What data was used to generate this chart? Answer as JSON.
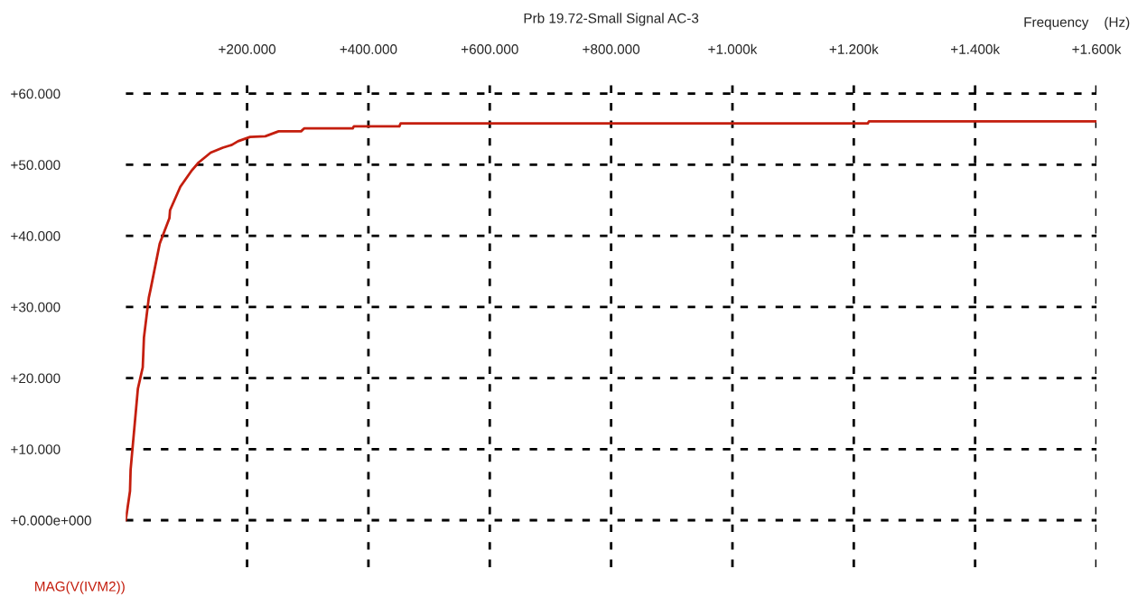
{
  "chart_data": {
    "type": "line",
    "title": "Prb 19.72-Small Signal AC-3",
    "xlabel": "Frequency    (Hz)",
    "series": [
      {
        "name": "MAG(V(IVM2))",
        "color": "#c41e0e",
        "x": [
          0,
          7,
          8,
          20,
          28,
          30,
          38,
          41,
          56,
          72,
          73,
          90,
          108,
          120,
          140,
          160,
          175,
          185,
          205,
          230,
          252,
          289,
          294,
          374,
          376,
          451,
          453,
          1223,
          1225,
          1600
        ],
        "values": [
          0,
          4.1,
          7.1,
          18.5,
          21.5,
          25.7,
          31.3,
          32.5,
          38.9,
          42.5,
          43.6,
          46.9,
          49.1,
          50.3,
          51.7,
          52.4,
          52.8,
          53.3,
          53.9,
          54.0,
          54.7,
          54.7,
          55.1,
          55.1,
          55.4,
          55.4,
          55.8,
          55.8,
          56.1,
          56.1
        ]
      }
    ],
    "xlim": [
      0,
      1600
    ],
    "ylim": [
      -6.6,
      62
    ],
    "xticks": [
      {
        "value": 200,
        "label": "+200.000"
      },
      {
        "value": 400,
        "label": "+400.000"
      },
      {
        "value": 600,
        "label": "+600.000"
      },
      {
        "value": 800,
        "label": "+800.000"
      },
      {
        "value": 1000,
        "label": "+1.000k"
      },
      {
        "value": 1200,
        "label": "+1.200k"
      },
      {
        "value": 1400,
        "label": "+1.400k"
      },
      {
        "value": 1600,
        "label": "+1.600k"
      }
    ],
    "yticks": [
      {
        "value": 0,
        "label": "+0.000e+000"
      },
      {
        "value": 10,
        "label": "+10.000"
      },
      {
        "value": 20,
        "label": "+20.000"
      },
      {
        "value": 30,
        "label": "+30.000"
      },
      {
        "value": 40,
        "label": "+40.000"
      },
      {
        "value": 50,
        "label": "+50.000"
      },
      {
        "value": 60,
        "label": "+60.000"
      }
    ],
    "grid": true,
    "line_style": "solid",
    "marker": "none",
    "legend": "bottom left"
  }
}
